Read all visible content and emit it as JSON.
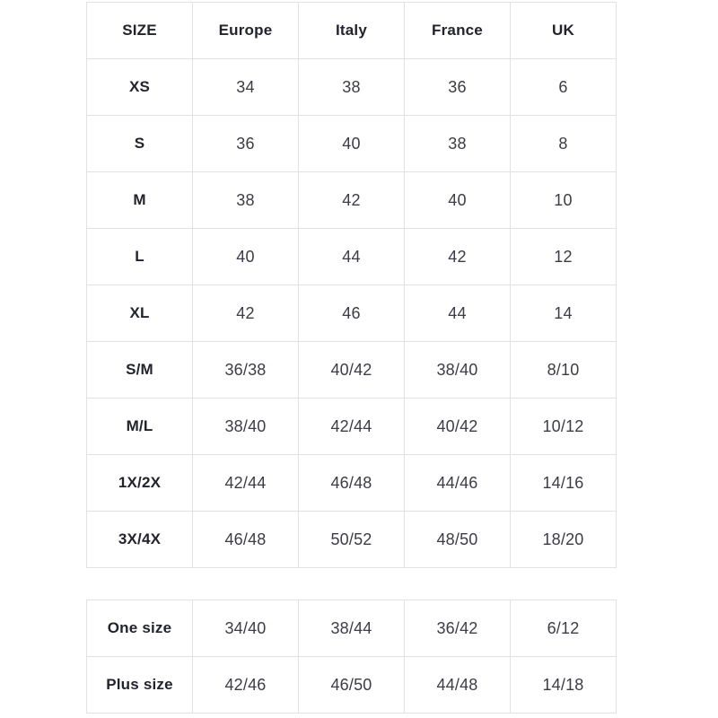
{
  "colors": {
    "border": "#e2e2e2",
    "header_text": "#23232e",
    "cell_text": "#3c3c46",
    "background": "#ffffff"
  },
  "table1": {
    "headers": [
      "SIZE",
      "Europe",
      "Italy",
      "France",
      "UK"
    ],
    "rows": [
      {
        "label": "XS",
        "values": [
          "34",
          "38",
          "36",
          "6"
        ]
      },
      {
        "label": "S",
        "values": [
          "36",
          "40",
          "38",
          "8"
        ]
      },
      {
        "label": "M",
        "values": [
          "38",
          "42",
          "40",
          "10"
        ]
      },
      {
        "label": "L",
        "values": [
          "40",
          "44",
          "42",
          "12"
        ]
      },
      {
        "label": "XL",
        "values": [
          "42",
          "46",
          "44",
          "14"
        ]
      },
      {
        "label": "S/M",
        "values": [
          "36/38",
          "40/42",
          "38/40",
          "8/10"
        ]
      },
      {
        "label": "M/L",
        "values": [
          "38/40",
          "42/44",
          "40/42",
          "10/12"
        ]
      },
      {
        "label": "1X/2X",
        "values": [
          "42/44",
          "46/48",
          "44/46",
          "14/16"
        ]
      },
      {
        "label": "3X/4X",
        "values": [
          "46/48",
          "50/52",
          "48/50",
          "18/20"
        ]
      }
    ]
  },
  "table2": {
    "rows": [
      {
        "label": "One size",
        "values": [
          "34/40",
          "38/44",
          "36/42",
          "6/12"
        ]
      },
      {
        "label": "Plus size",
        "values": [
          "42/46",
          "46/50",
          "44/48",
          "14/18"
        ]
      }
    ]
  }
}
